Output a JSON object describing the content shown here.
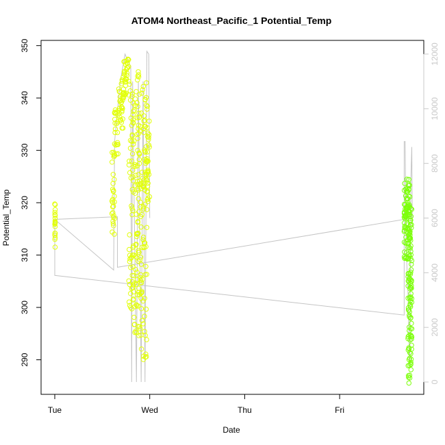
{
  "chart_data": {
    "type": "scatter",
    "title": "ATOM4 Northeast_Pacific_1 Potential_Temp",
    "xlabel": "Date",
    "ylabel": "Potential_Temp",
    "x_ticks": [
      {
        "label": "Tue",
        "day": 0
      },
      {
        "label": "Wed",
        "day": 1
      },
      {
        "label": "Thu",
        "day": 2
      },
      {
        "label": "Fri",
        "day": 3
      }
    ],
    "ylim": [
      283.4,
      351.0
    ],
    "y_ticks": [
      290,
      300,
      310,
      320,
      330,
      340,
      350
    ],
    "y2lim": [
      -450,
      12500
    ],
    "y2_ticks": [
      0,
      2000,
      4000,
      6000,
      8000,
      10000,
      12000
    ],
    "grid": false,
    "colors": {
      "points_early": "#e2ff0a",
      "points_late": "#7cff0a",
      "altitude_line": "#c4c4c4",
      "right_axis": "#c8c8c8"
    },
    "series": [
      {
        "segments": [
          {
            "x_range": [
              0.0,
              0.005
            ],
            "y_min": 311,
            "y_max": 320.5,
            "n": 20
          },
          {
            "x_range": [
              0.6,
              0.63
            ],
            "y_min": 313,
            "y_max": 331,
            "n": 30
          },
          {
            "x_range": [
              0.63,
              0.67
            ],
            "y_min": 329,
            "y_max": 338,
            "n": 24
          },
          {
            "x_range": [
              0.67,
              0.72
            ],
            "y_min": 334,
            "y_max": 344,
            "n": 30
          },
          {
            "x_range": [
              0.72,
              0.78
            ],
            "y_min": 340,
            "y_max": 347.5,
            "n": 36
          },
          {
            "x_range": [
              0.78,
              0.83
            ],
            "y_min": 299,
            "y_max": 345,
            "n": 60
          },
          {
            "x_range": [
              0.83,
              0.9
            ],
            "y_min": 294,
            "y_max": 346,
            "n": 90
          },
          {
            "x_range": [
              0.9,
              0.97
            ],
            "y_min": 290,
            "y_max": 343,
            "n": 90
          },
          {
            "x_range": [
              0.97,
              1.0
            ],
            "y_min": 320,
            "y_max": 339,
            "n": 30
          }
        ]
      },
      {
        "segments": [
          {
            "x_range": [
              3.68,
              3.72
            ],
            "y_min": 309,
            "y_max": 325,
            "n": 60
          },
          {
            "x_range": [
              3.72,
              3.74
            ],
            "y_min": 285,
            "y_max": 325,
            "n": 70
          },
          {
            "x_range": [
              3.74,
              3.76
            ],
            "y_min": 288,
            "y_max": 319.5,
            "n": 60
          }
        ]
      },
      {
        "path": [
          [
            0.0,
            5950
          ],
          [
            0.0,
            3900
          ],
          [
            3.68,
            2450
          ],
          [
            3.68,
            8800
          ],
          [
            3.69,
            8800
          ],
          [
            3.7,
            5000
          ],
          [
            3.72,
            3200
          ],
          [
            3.73,
            1500
          ],
          [
            3.74,
            600
          ],
          [
            3.75,
            7400
          ],
          [
            3.76,
            8600
          ],
          [
            3.765,
            6000
          ],
          [
            0.66,
            4200
          ],
          [
            0.66,
            6050
          ],
          [
            0.0,
            5950
          ],
          [
            0.62,
            4100
          ],
          [
            0.63,
            8800
          ],
          [
            0.69,
            11000
          ],
          [
            0.74,
            12000
          ],
          [
            0.8,
            11500
          ],
          [
            0.81,
            0
          ],
          [
            0.82,
            11000
          ],
          [
            0.86,
            0
          ],
          [
            0.88,
            11000
          ],
          [
            0.91,
            0
          ],
          [
            0.93,
            11000
          ],
          [
            0.95,
            0
          ],
          [
            0.97,
            12100
          ],
          [
            0.99,
            12000
          ],
          [
            1.0,
            6000
          ]
        ]
      }
    ]
  }
}
